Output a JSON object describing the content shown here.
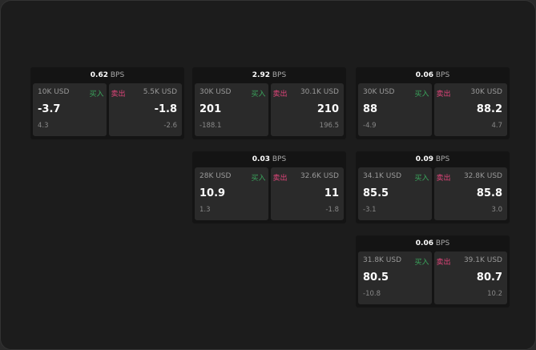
{
  "colors": {
    "buy": "#3aa55c",
    "sell": "#e0457a"
  },
  "buy_label": "买入",
  "sell_label": "卖出",
  "unit": "BPS",
  "tiles": [
    {
      "spread": "0.62",
      "bid_qty": "10K USD",
      "bid": "-3.7",
      "bid_chg": "4.3",
      "ask_qty": "5.5K USD",
      "ask": "-1.8",
      "ask_chg": "-2.6"
    },
    {
      "spread": "2.92",
      "bid_qty": "30K USD",
      "bid": "201",
      "bid_chg": "-188.1",
      "ask_qty": "30.1K USD",
      "ask": "210",
      "ask_chg": "196.5"
    },
    {
      "spread": "0.06",
      "bid_qty": "30K USD",
      "bid": "88",
      "bid_chg": "-4.9",
      "ask_qty": "30K USD",
      "ask": "88.2",
      "ask_chg": "4.7"
    },
    {
      "spread": "0.03",
      "bid_qty": "28K USD",
      "bid": "10.9",
      "bid_chg": "1.3",
      "ask_qty": "32.6K USD",
      "ask": "11",
      "ask_chg": "-1.8"
    },
    {
      "spread": "0.09",
      "bid_qty": "34.1K USD",
      "bid": "85.5",
      "bid_chg": "-3.1",
      "ask_qty": "32.8K USD",
      "ask": "85.8",
      "ask_chg": "3.0"
    },
    {
      "spread": "0.06",
      "bid_qty": "31.8K USD",
      "bid": "80.5",
      "bid_chg": "-10.8",
      "ask_qty": "39.1K USD",
      "ask": "80.7",
      "ask_chg": "10.2"
    }
  ]
}
